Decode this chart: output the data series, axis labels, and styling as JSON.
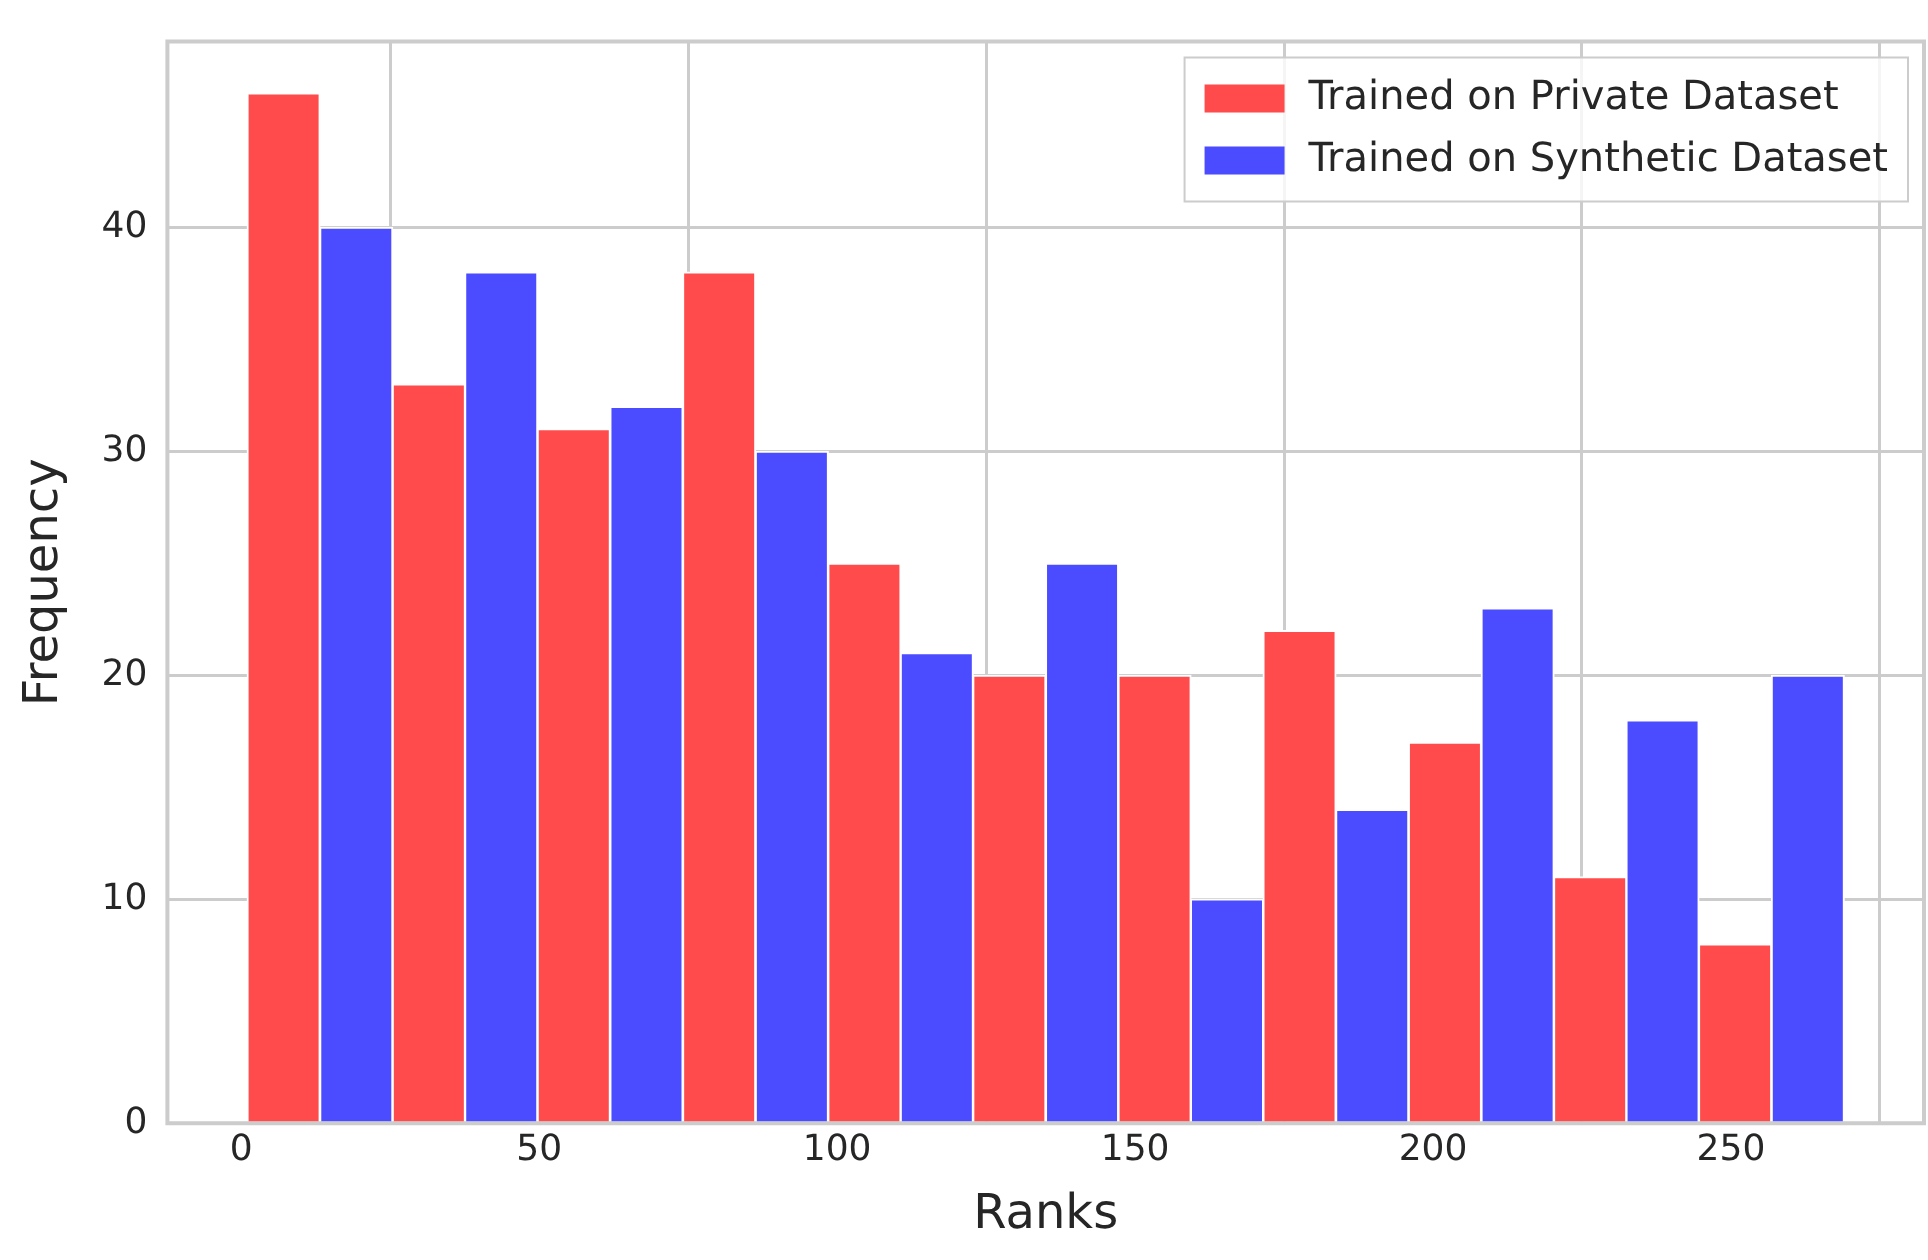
{
  "chart_data": {
    "type": "histogram",
    "xlabel": "Ranks",
    "ylabel": "Frequency",
    "bins": [
      1,
      25.4,
      49.7,
      74.1,
      98.5,
      122.8,
      147.2,
      171.5,
      195.9,
      220.3,
      244.6,
      269
    ],
    "series": [
      {
        "name": "Trained on Private Dataset",
        "color": "#ff4b4b",
        "values": [
          46,
          33,
          31,
          38,
          25,
          20,
          20,
          22,
          17,
          11,
          8
        ]
      },
      {
        "name": "Trained on Synthetic Dataset",
        "color": "#4b4bff",
        "values": [
          40,
          38,
          32,
          30,
          21,
          25,
          10,
          14,
          23,
          18,
          20
        ]
      }
    ],
    "xlim": [
      -12.4,
      282.4
    ],
    "xticks": [
      0,
      50,
      100,
      150,
      200,
      250
    ],
    "ylim": [
      0,
      48.3
    ],
    "yticks": [
      0,
      10,
      20,
      30,
      40
    ],
    "grid": true,
    "legend": "top right"
  }
}
